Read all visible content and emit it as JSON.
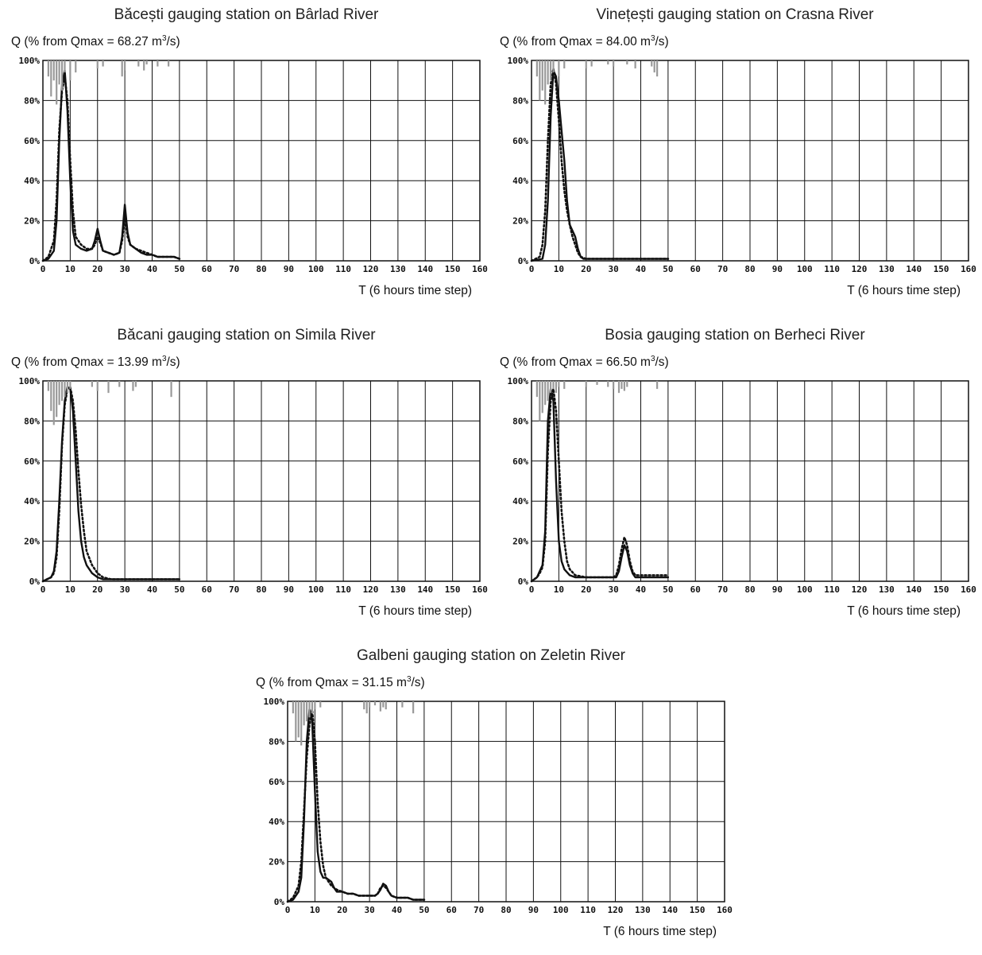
{
  "chart_data": [
    {
      "type": "line",
      "title": "Băcești gauging station on Bârlad River",
      "ylabel": "Q (% from Qmax = 68.27 m",
      "ylabel_sup": "3",
      "ylabel_end": "/s)",
      "xlabel": "T (6 hours time step)",
      "xlim": [
        0,
        160
      ],
      "ylim": [
        0,
        100
      ],
      "xticks": [
        "0",
        "10",
        "20",
        "30",
        "40",
        "50",
        "60",
        "70",
        "80",
        "90",
        "100",
        "110",
        "120",
        "130",
        "140",
        "150",
        "160"
      ],
      "yticks": [
        "0%",
        "20%",
        "40%",
        "60%",
        "80%",
        "100%"
      ],
      "grid": true,
      "series": [
        {
          "style": "solid",
          "color": "#111111",
          "x": [
            0,
            2,
            4,
            5,
            6,
            7,
            8,
            9,
            10,
            11,
            12,
            14,
            16,
            18,
            19,
            20,
            21,
            22,
            24,
            26,
            28,
            29,
            30,
            31,
            32,
            34,
            36,
            38,
            40,
            42,
            44,
            46,
            48,
            50
          ],
          "y": [
            0,
            1,
            5,
            20,
            60,
            88,
            95,
            75,
            40,
            15,
            8,
            6,
            5,
            6,
            10,
            16,
            10,
            5,
            4,
            3,
            4,
            12,
            28,
            14,
            8,
            6,
            4,
            3,
            3,
            2,
            2,
            2,
            2,
            1
          ]
        },
        {
          "style": "dotted",
          "color": "#111111",
          "x": [
            0,
            2,
            4,
            5,
            6,
            7,
            8,
            9,
            10,
            11,
            12,
            14,
            16,
            18,
            19,
            20,
            21,
            22,
            24,
            26,
            28,
            29,
            30,
            31,
            32,
            34,
            36,
            38,
            40,
            42,
            44,
            46,
            48,
            50
          ],
          "y": [
            0,
            2,
            10,
            30,
            65,
            85,
            92,
            80,
            50,
            25,
            12,
            8,
            6,
            6,
            8,
            12,
            9,
            5,
            4,
            3,
            4,
            10,
            22,
            12,
            8,
            6,
            5,
            4,
            3,
            2,
            2,
            2,
            2,
            1
          ]
        },
        {
          "style": "bars-top",
          "color": "#999999",
          "x": [
            2,
            3,
            4,
            5,
            6,
            7,
            8,
            10,
            12,
            20,
            22,
            29,
            30,
            35,
            37,
            38,
            42,
            46
          ],
          "y": [
            8,
            18,
            10,
            22,
            12,
            15,
            6,
            10,
            6,
            4,
            3,
            8,
            5,
            3,
            5,
            2,
            3,
            3
          ]
        }
      ]
    },
    {
      "type": "line",
      "title": "Vinețești gauging station on Crasna River",
      "ylabel": "Q (% from Qmax = 84.00 m",
      "ylabel_sup": "3",
      "ylabel_end": "/s)",
      "xlabel": "T (6 hours time step)",
      "xlim": [
        0,
        160
      ],
      "ylim": [
        0,
        100
      ],
      "xticks": [
        "0",
        "10",
        "20",
        "30",
        "40",
        "50",
        "60",
        "70",
        "80",
        "90",
        "100",
        "110",
        "120",
        "130",
        "140",
        "150",
        "160"
      ],
      "yticks": [
        "0%",
        "20%",
        "40%",
        "60%",
        "80%",
        "100%"
      ],
      "grid": true,
      "series": [
        {
          "style": "solid",
          "color": "#111111",
          "x": [
            0,
            4,
            5,
            6,
            7,
            8,
            9,
            10,
            11,
            12,
            13,
            14,
            15,
            16,
            17,
            18,
            19,
            20,
            25,
            30,
            40,
            50
          ],
          "y": [
            0,
            1,
            8,
            30,
            72,
            95,
            92,
            80,
            65,
            50,
            30,
            18,
            15,
            12,
            6,
            2,
            1,
            1,
            1,
            1,
            1,
            1
          ]
        },
        {
          "style": "dotted",
          "color": "#111111",
          "x": [
            0,
            3,
            4,
            5,
            6,
            7,
            8,
            9,
            10,
            11,
            12,
            13,
            14,
            15,
            16,
            17,
            18,
            20,
            30,
            50
          ],
          "y": [
            0,
            2,
            8,
            25,
            60,
            88,
            96,
            88,
            70,
            50,
            35,
            25,
            18,
            12,
            8,
            4,
            2,
            1,
            1,
            1
          ]
        },
        {
          "style": "bars-top",
          "color": "#999999",
          "x": [
            2,
            3,
            4,
            5,
            6,
            7,
            8,
            10,
            12,
            20,
            22,
            28,
            30,
            35,
            38,
            44,
            45,
            46
          ],
          "y": [
            8,
            20,
            15,
            22,
            12,
            10,
            6,
            8,
            4,
            4,
            3,
            2,
            3,
            2,
            4,
            3,
            6,
            8
          ]
        }
      ]
    },
    {
      "type": "line",
      "title": "Băcani gauging station on Simila River",
      "ylabel": "Q (% from Qmax = 13.99 m",
      "ylabel_sup": "3",
      "ylabel_end": "/s)",
      "xlabel": "T (6 hours time step)",
      "xlim": [
        0,
        160
      ],
      "ylim": [
        0,
        100
      ],
      "xticks": [
        "0",
        "10",
        "20",
        "30",
        "40",
        "50",
        "60",
        "70",
        "80",
        "90",
        "100",
        "110",
        "120",
        "130",
        "140",
        "150",
        "160"
      ],
      "yticks": [
        "0%",
        "20%",
        "40%",
        "60%",
        "80%",
        "100%"
      ],
      "grid": true,
      "series": [
        {
          "style": "solid",
          "color": "#111111",
          "x": [
            0,
            3,
            4,
            5,
            6,
            7,
            8,
            9,
            10,
            11,
            12,
            13,
            14,
            15,
            16,
            18,
            20,
            22,
            25,
            30,
            40,
            50
          ],
          "y": [
            0,
            2,
            5,
            15,
            40,
            70,
            90,
            97,
            96,
            85,
            60,
            35,
            20,
            12,
            8,
            4,
            2,
            1,
            1,
            1,
            1,
            1
          ]
        },
        {
          "style": "dotted",
          "color": "#111111",
          "x": [
            0,
            3,
            4,
            5,
            6,
            7,
            8,
            9,
            10,
            11,
            12,
            13,
            14,
            15,
            16,
            18,
            20,
            22,
            25,
            30,
            40,
            50
          ],
          "y": [
            0,
            2,
            4,
            12,
            35,
            68,
            88,
            96,
            97,
            90,
            75,
            55,
            38,
            25,
            15,
            8,
            4,
            2,
            1,
            1,
            1,
            1
          ]
        },
        {
          "style": "bars-top",
          "color": "#999999",
          "x": [
            2,
            3,
            4,
            5,
            6,
            7,
            8,
            9,
            10,
            18,
            20,
            24,
            28,
            33,
            34,
            47
          ],
          "y": [
            5,
            15,
            22,
            18,
            12,
            10,
            8,
            6,
            4,
            3,
            5,
            6,
            3,
            5,
            3,
            8
          ]
        }
      ]
    },
    {
      "type": "line",
      "title": "Bosia gauging station on Berheci River",
      "ylabel": "Q (% from Qmax = 66.50 m",
      "ylabel_sup": "3",
      "ylabel_end": "/s)",
      "xlabel": "T (6 hours time step)",
      "xlim": [
        0,
        160
      ],
      "ylim": [
        0,
        100
      ],
      "xticks": [
        "0",
        "10",
        "20",
        "30",
        "40",
        "50",
        "60",
        "70",
        "80",
        "90",
        "100",
        "110",
        "120",
        "130",
        "140",
        "150",
        "160"
      ],
      "yticks": [
        "0%",
        "20%",
        "40%",
        "60%",
        "80%",
        "100%"
      ],
      "grid": true,
      "series": [
        {
          "style": "solid",
          "color": "#111111",
          "x": [
            0,
            2,
            3,
            4,
            5,
            6,
            7,
            8,
            9,
            10,
            11,
            12,
            14,
            16,
            20,
            25,
            30,
            31,
            32,
            33,
            34,
            35,
            36,
            37,
            38,
            40,
            45,
            50
          ],
          "y": [
            0,
            2,
            5,
            8,
            25,
            80,
            96,
            90,
            50,
            20,
            10,
            6,
            3,
            2,
            2,
            2,
            2,
            2,
            5,
            12,
            18,
            15,
            8,
            4,
            2,
            2,
            2,
            2
          ]
        },
        {
          "style": "dotted",
          "color": "#111111",
          "x": [
            0,
            2,
            3,
            4,
            5,
            6,
            7,
            8,
            9,
            10,
            11,
            12,
            13,
            14,
            16,
            20,
            25,
            30,
            31,
            32,
            33,
            34,
            35,
            36,
            37,
            38,
            40,
            45,
            50
          ],
          "y": [
            0,
            2,
            4,
            7,
            20,
            65,
            90,
            96,
            85,
            60,
            35,
            20,
            10,
            6,
            3,
            2,
            2,
            2,
            3,
            8,
            16,
            22,
            18,
            10,
            5,
            3,
            3,
            3,
            3
          ]
        },
        {
          "style": "bars-top",
          "color": "#999999",
          "x": [
            2,
            3,
            4,
            5,
            6,
            7,
            8,
            9,
            10,
            12,
            20,
            24,
            28,
            30,
            32,
            33,
            34,
            35,
            46
          ],
          "y": [
            8,
            20,
            16,
            12,
            10,
            6,
            4,
            6,
            3,
            4,
            3,
            2,
            3,
            4,
            6,
            4,
            5,
            3,
            4
          ]
        }
      ]
    },
    {
      "type": "line",
      "title": "Galbeni gauging station on Zeletin River",
      "ylabel": "Q (% from Qmax = 31.15 m",
      "ylabel_sup": "3",
      "ylabel_end": "/s)",
      "xlabel": "T (6 hours time step)",
      "xlim": [
        0,
        160
      ],
      "ylim": [
        0,
        100
      ],
      "xticks": [
        "0",
        "10",
        "20",
        "30",
        "40",
        "50",
        "60",
        "70",
        "80",
        "90",
        "100",
        "110",
        "120",
        "130",
        "140",
        "150",
        "160"
      ],
      "yticks": [
        "0%",
        "20%",
        "40%",
        "60%",
        "80%",
        "100%"
      ],
      "grid": true,
      "series": [
        {
          "style": "solid",
          "color": "#111111",
          "x": [
            0,
            2,
            4,
            5,
            6,
            7,
            8,
            9,
            10,
            11,
            12,
            13,
            14,
            15,
            16,
            17,
            18,
            19,
            20,
            22,
            24,
            26,
            28,
            30,
            32,
            33,
            34,
            35,
            36,
            37,
            38,
            40,
            42,
            44,
            46,
            48,
            50
          ],
          "y": [
            0,
            1,
            5,
            12,
            40,
            80,
            96,
            90,
            55,
            25,
            15,
            12,
            12,
            11,
            10,
            7,
            5,
            5,
            5,
            4,
            4,
            3,
            3,
            3,
            3,
            4,
            6,
            9,
            8,
            5,
            3,
            2,
            2,
            2,
            1,
            1,
            1
          ]
        },
        {
          "style": "dotted",
          "color": "#111111",
          "x": [
            0,
            2,
            4,
            5,
            6,
            7,
            8,
            9,
            10,
            11,
            12,
            13,
            14,
            16,
            18,
            20,
            22,
            24,
            26,
            28,
            30,
            32,
            33,
            34,
            35,
            36,
            37,
            38,
            40,
            42,
            44,
            46,
            48,
            50
          ],
          "y": [
            0,
            2,
            8,
            20,
            45,
            72,
            88,
            96,
            80,
            50,
            30,
            18,
            12,
            8,
            6,
            5,
            4,
            4,
            3,
            3,
            3,
            3,
            4,
            7,
            8,
            7,
            5,
            3,
            2,
            2,
            2,
            1,
            1,
            1
          ]
        },
        {
          "style": "bars-top",
          "color": "#999999",
          "x": [
            2,
            3,
            4,
            5,
            6,
            7,
            8,
            9,
            10,
            12,
            28,
            29,
            30,
            32,
            34,
            35,
            36,
            42,
            46
          ],
          "y": [
            6,
            20,
            18,
            22,
            12,
            10,
            8,
            6,
            4,
            3,
            4,
            6,
            3,
            2,
            5,
            3,
            4,
            3,
            6
          ]
        }
      ]
    }
  ]
}
